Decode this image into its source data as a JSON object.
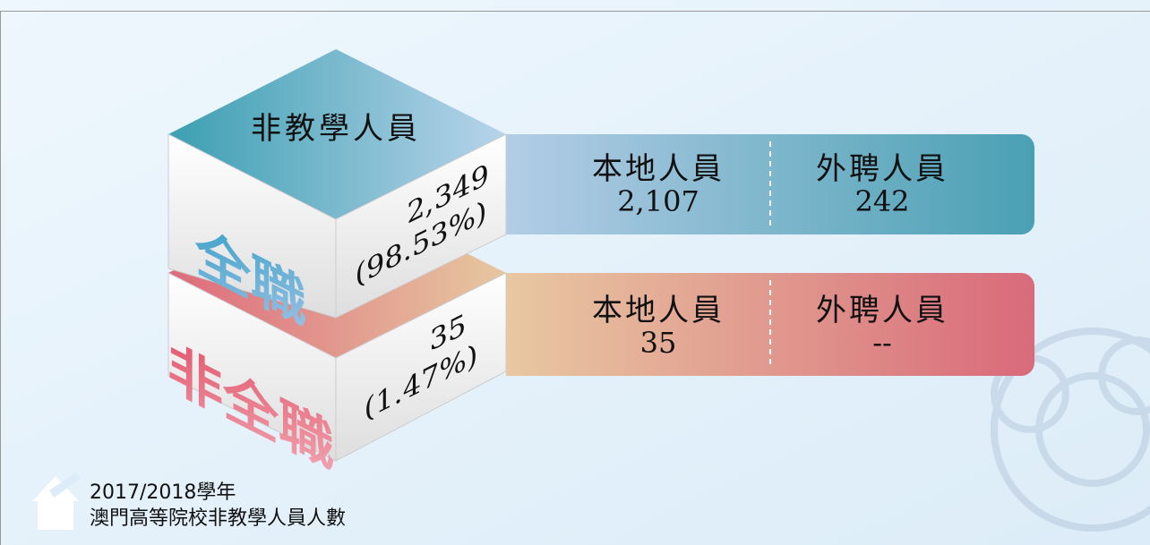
{
  "header": {
    "title": "非教學人員"
  },
  "blocks": [
    {
      "label": "全職",
      "total": "2,349",
      "share": "(98.53%)",
      "local": {
        "label": "本地人員",
        "value": "2,107"
      },
      "foreign": {
        "label": "外聘人員",
        "value": "242"
      }
    },
    {
      "label": "非全職",
      "total": "35",
      "share": "(1.47%)",
      "local": {
        "label": "本地人員",
        "value": "35"
      },
      "foreign": {
        "label": "外聘人員",
        "value": "--"
      }
    }
  ],
  "footer": {
    "year": "2017/2018學年",
    "caption": "澳門高等院校非教學人員人數"
  }
}
